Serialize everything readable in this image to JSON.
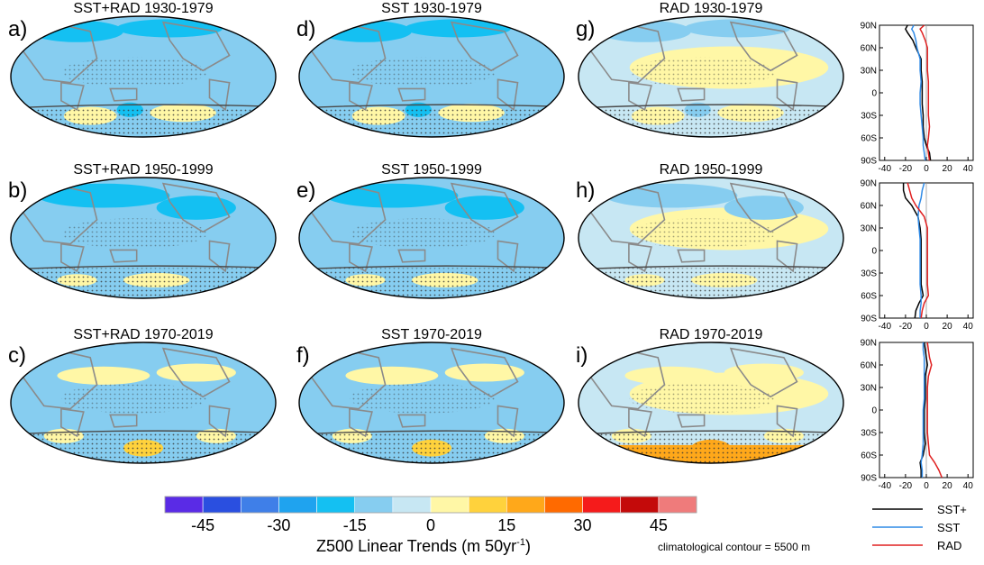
{
  "chart_data": {
    "type": "heatmap",
    "units_title": "Z500 Linear Trends (m 50yr",
    "units_sup": "-1",
    "units_close": ")",
    "colorbar_ticks": [
      "-45",
      "-30",
      "-15",
      "0",
      "15",
      "30",
      "45"
    ],
    "colorbar_colors": [
      "#5a2be6",
      "#2a4fe0",
      "#3f7fe8",
      "#1fa3ef",
      "#14c0f2",
      "#86cdf0",
      "#c7e7f3",
      "#fff7a6",
      "#ffd23c",
      "#ffa81a",
      "#ff6a00",
      "#f51b1b",
      "#c40a0a",
      "#ef7b7b"
    ],
    "note": "climatological contour = 5500 m",
    "panels": [
      {
        "label": "a)",
        "title": "SST+RAD 1930-1979",
        "forcing": "SST+RAD"
      },
      {
        "label": "b)",
        "title": "SST+RAD 1950-1999",
        "forcing": "SST+RAD"
      },
      {
        "label": "c)",
        "title": "SST+RAD 1970-2019",
        "forcing": "SST+RAD"
      },
      {
        "label": "d)",
        "title": "SST 1930-1979",
        "forcing": "SST"
      },
      {
        "label": "e)",
        "title": "SST 1950-1999",
        "forcing": "SST"
      },
      {
        "label": "f)",
        "title": "SST 1970-2019",
        "forcing": "SST"
      },
      {
        "label": "g)",
        "title": "RAD 1930-1979",
        "forcing": "RAD"
      },
      {
        "label": "h)",
        "title": "RAD 1950-1999",
        "forcing": "RAD"
      },
      {
        "label": "i)",
        "title": "RAD 1970-2019",
        "forcing": "RAD"
      }
    ],
    "profile": {
      "lat_ticks": [
        "90N",
        "60N",
        "30N",
        "0",
        "30S",
        "60S",
        "90S"
      ],
      "lat_values": [
        90,
        60,
        30,
        0,
        -30,
        -60,
        -90
      ],
      "x_ticks": [
        "-40",
        "-20",
        "0",
        "20",
        "40"
      ],
      "xlim": [
        -45,
        45
      ],
      "legend": [
        {
          "name": "SST+",
          "color": "#000000"
        },
        {
          "name": "SST",
          "color": "#2f8ae6"
        },
        {
          "name": "RAD",
          "color": "#e02020"
        }
      ],
      "rows": [
        {
          "period": "1930-1979",
          "series": [
            {
              "name": "SST+",
              "lat": [
                90,
                85,
                80,
                70,
                60,
                45,
                30,
                15,
                0,
                -15,
                -30,
                -45,
                -60,
                -70,
                -80,
                -90
              ],
              "values": [
                -18,
                -20,
                -18,
                -13,
                -10,
                -5,
                -5,
                -4,
                -4,
                -4,
                -3,
                -3,
                -2,
                0,
                3,
                4
              ]
            },
            {
              "name": "SST",
              "lat": [
                90,
                85,
                80,
                70,
                60,
                45,
                30,
                15,
                0,
                -15,
                -30,
                -45,
                -60,
                -70,
                -80,
                -90
              ],
              "values": [
                -12,
                -14,
                -12,
                -10,
                -9,
                -6,
                -6,
                -5,
                -6,
                -6,
                -5,
                -4,
                -3,
                -3,
                -2,
                -1
              ]
            },
            {
              "name": "RAD",
              "lat": [
                90,
                85,
                80,
                70,
                60,
                45,
                30,
                15,
                0,
                -15,
                -30,
                -45,
                -60,
                -70,
                -80,
                -90
              ],
              "values": [
                -2,
                -6,
                -4,
                -1,
                1,
                1,
                1,
                2,
                2,
                2,
                2,
                3,
                2,
                1,
                2,
                3
              ]
            }
          ]
        },
        {
          "period": "1950-1999",
          "series": [
            {
              "name": "SST+",
              "lat": [
                90,
                80,
                70,
                60,
                45,
                30,
                15,
                0,
                -15,
                -30,
                -45,
                -60,
                -70,
                -80,
                -90
              ],
              "values": [
                -22,
                -22,
                -20,
                -14,
                -8,
                -6,
                -5,
                -5,
                -5,
                -5,
                -5,
                -3,
                -7,
                -10,
                -11
              ]
            },
            {
              "name": "SST",
              "lat": [
                90,
                80,
                70,
                60,
                45,
                30,
                15,
                0,
                -15,
                -30,
                -45,
                -60,
                -70,
                -80,
                -90
              ],
              "values": [
                -2,
                -4,
                -5,
                -7,
                -8,
                -7,
                -6,
                -6,
                -6,
                -6,
                -6,
                -5,
                -5,
                -6,
                -6
              ]
            },
            {
              "name": "RAD",
              "lat": [
                90,
                80,
                70,
                60,
                45,
                30,
                15,
                0,
                -15,
                -30,
                -45,
                -60,
                -70,
                -80,
                -90
              ],
              "values": [
                -18,
                -16,
                -14,
                -10,
                -2,
                1,
                1,
                1,
                1,
                1,
                1,
                2,
                -2,
                -4,
                -5
              ]
            }
          ]
        },
        {
          "period": "1970-2019",
          "series": [
            {
              "name": "SST+",
              "lat": [
                90,
                80,
                70,
                60,
                45,
                30,
                15,
                0,
                -15,
                -30,
                -45,
                -60,
                -70,
                -80,
                -90
              ],
              "values": [
                -2,
                -1,
                0,
                1,
                -1,
                -1,
                -1,
                -2,
                -2,
                -2,
                -1,
                -3,
                -6,
                -5,
                -5
              ]
            },
            {
              "name": "SST",
              "lat": [
                90,
                80,
                70,
                60,
                45,
                30,
                15,
                0,
                -15,
                -30,
                -45,
                -60,
                -70,
                -80,
                -90
              ],
              "values": [
                -3,
                -3,
                -2,
                -2,
                -2,
                -2,
                -2,
                -3,
                -3,
                -3,
                -3,
                -4,
                -5,
                -4,
                -4
              ]
            },
            {
              "name": "RAD",
              "lat": [
                90,
                80,
                70,
                60,
                45,
                30,
                15,
                0,
                -15,
                -30,
                -45,
                -60,
                -70,
                -80,
                -90
              ],
              "values": [
                1,
                2,
                3,
                5,
                2,
                1,
                1,
                1,
                1,
                1,
                2,
                3,
                8,
                12,
                15
              ]
            }
          ]
        }
      ]
    }
  }
}
